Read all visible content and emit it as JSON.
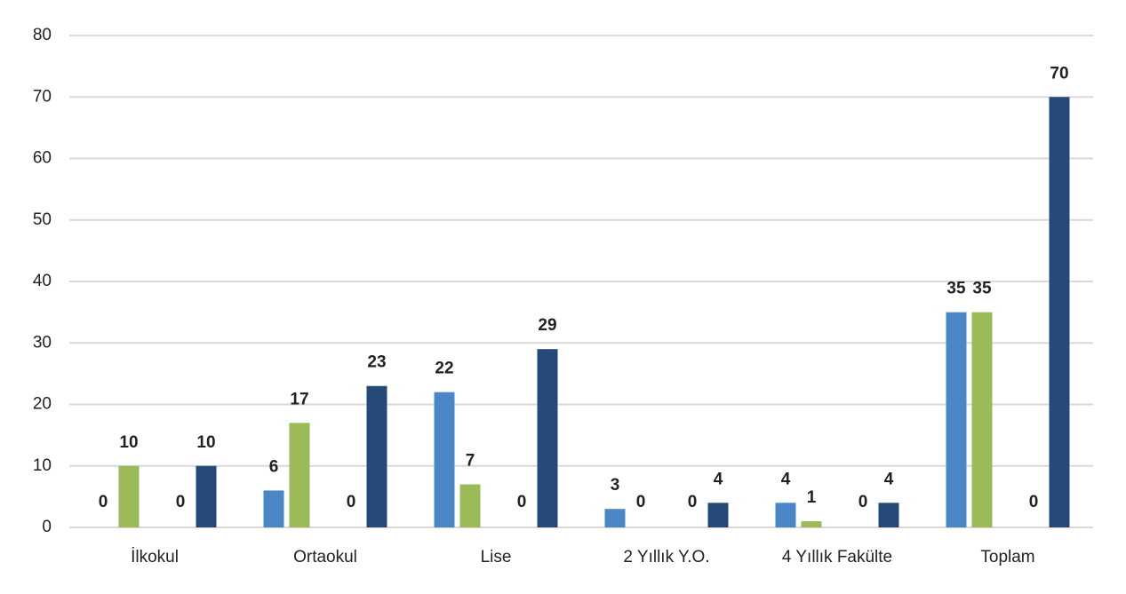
{
  "chart_data": {
    "type": "bar",
    "categories": [
      "İlkokul",
      "Ortaokul",
      "Lise",
      "2 Yıllık Y.O.",
      "4 Yıllık Fakülte",
      "Toplam"
    ],
    "series": [
      {
        "color": "#4a86c8",
        "values": [
          0,
          6,
          22,
          3,
          4,
          35
        ]
      },
      {
        "color": "#9bbb59",
        "values": [
          10,
          17,
          7,
          0,
          1,
          35
        ]
      },
      {
        "color": "#7f7f7f",
        "values": [
          0,
          0,
          0,
          0,
          0,
          0
        ]
      },
      {
        "color": "#254a78",
        "values": [
          10,
          23,
          29,
          4,
          4,
          70
        ]
      }
    ],
    "ylim": [
      0,
      80
    ],
    "yticks": [
      0,
      10,
      20,
      30,
      40,
      50,
      60,
      70,
      80
    ],
    "grid": true
  }
}
